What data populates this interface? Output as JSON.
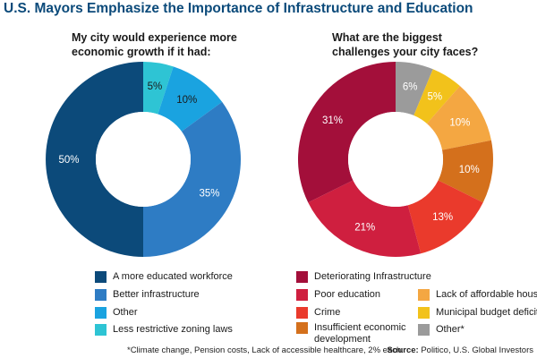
{
  "page_title": "U.S. Mayors Emphasize the Importance of Infrastructure and Education",
  "footnote": "*Climate change, Pension costs, Lack of accessible healthcare, 2% each.",
  "source": {
    "label": "Source:",
    "text": "Politico, U.S. Global Investors"
  },
  "chart_data": [
    {
      "type": "pie",
      "donut": true,
      "title_lines": [
        "My city would experience more",
        "economic growth if it had:"
      ],
      "categories": [
        "A more educated workforce",
        "Better infrastructure",
        "Other",
        "Less restrictive zoning laws"
      ],
      "values": [
        50,
        35,
        10,
        5
      ],
      "value_labels": [
        "50%",
        "35%",
        "10%",
        "5%"
      ],
      "colors": [
        "#0c4a7a",
        "#2e7cc4",
        "#1aa3e0",
        "#2ec4d4"
      ],
      "slice_order": [
        3,
        2,
        1,
        0
      ],
      "label_colors": [
        "#ffffff",
        "#ffffff",
        "#1a1a1a",
        "#1a1a1a"
      ]
    },
    {
      "type": "pie",
      "donut": true,
      "title_lines": [
        "What are the biggest",
        "challenges your city faces?"
      ],
      "categories": [
        "Deteriorating Infrastructure",
        "Poor education",
        "Crime",
        "Insufficient economic development",
        "Lack of affordable housing",
        "Municipal budget deficit",
        "Other*"
      ],
      "values": [
        31,
        21,
        13,
        10,
        10,
        5,
        6
      ],
      "value_labels": [
        "31%",
        "21%",
        "13%",
        "10%",
        "10%",
        "5%",
        "6%"
      ],
      "colors": [
        "#a30f3a",
        "#cf1f3f",
        "#ea3a2c",
        "#d4701c",
        "#f4a742",
        "#f2c21b",
        "#9b9b9b"
      ],
      "slice_order": [
        6,
        5,
        4,
        3,
        2,
        1,
        0
      ],
      "label_colors": [
        "#ffffff",
        "#ffffff",
        "#ffffff",
        "#ffffff",
        "#ffffff",
        "#ffffff",
        "#ffffff"
      ]
    }
  ]
}
